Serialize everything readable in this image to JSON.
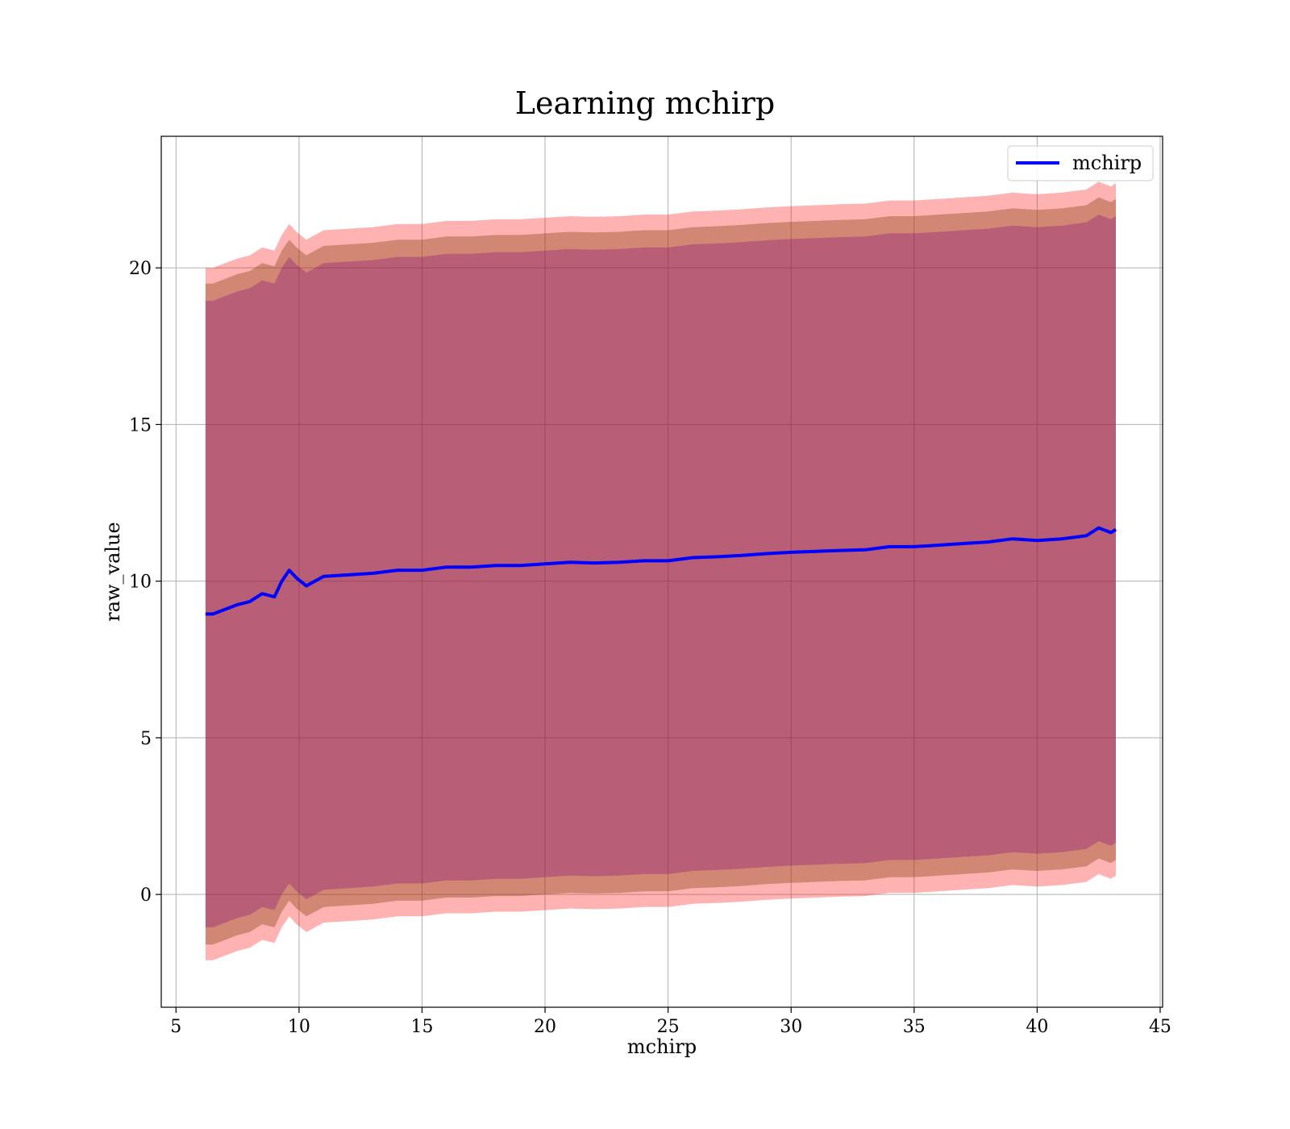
{
  "chart_data": {
    "type": "area",
    "title": "Learning mchirp",
    "xlabel": "mchirp",
    "ylabel": "raw_value",
    "xlim": [
      4.4,
      45.1
    ],
    "ylim": [
      -3.6,
      24.2
    ],
    "xticks": [
      5,
      10,
      15,
      20,
      25,
      30,
      35,
      40,
      45
    ],
    "yticks": [
      0,
      5,
      10,
      15,
      20
    ],
    "grid": true,
    "legend_position": "top-right",
    "legend": [
      "mchirp"
    ],
    "colors": {
      "line": "#0000ff",
      "outer_band": "#ff0000",
      "middle_band": "#8b4513",
      "inner_band": "#800080",
      "grid": "#b0b0b0"
    },
    "series": [
      {
        "name": "mchirp",
        "x": [
          6.2,
          6.5,
          7.0,
          7.5,
          8.0,
          8.5,
          9.0,
          9.3,
          9.6,
          9.9,
          10.3,
          11.0,
          12.0,
          13.0,
          14.0,
          15.0,
          16.0,
          17.0,
          18.0,
          19.0,
          20.0,
          21.0,
          22.0,
          23.0,
          24.0,
          25.0,
          26.0,
          27.0,
          28.0,
          29.0,
          30.0,
          31.0,
          32.0,
          33.0,
          34.0,
          35.0,
          36.0,
          37.0,
          38.0,
          39.0,
          40.0,
          41.0,
          42.0,
          42.5,
          43.0,
          43.2
        ],
        "values": [
          8.95,
          8.95,
          9.1,
          9.25,
          9.35,
          9.6,
          9.5,
          10.0,
          10.35,
          10.1,
          9.85,
          10.15,
          10.2,
          10.25,
          10.35,
          10.35,
          10.45,
          10.45,
          10.5,
          10.5,
          10.55,
          10.6,
          10.58,
          10.6,
          10.65,
          10.65,
          10.75,
          10.78,
          10.82,
          10.88,
          10.92,
          10.95,
          10.98,
          11.0,
          11.1,
          11.1,
          11.15,
          11.2,
          11.25,
          11.35,
          11.3,
          11.35,
          11.45,
          11.7,
          11.55,
          11.65
        ],
        "bands": [
          {
            "half_width": 11.05
          },
          {
            "half_width": 10.55
          },
          {
            "half_width": 10.0
          }
        ]
      }
    ]
  }
}
